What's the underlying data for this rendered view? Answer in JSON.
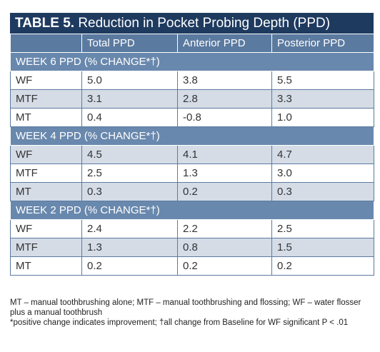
{
  "table": {
    "title_bold": "TABLE 5.",
    "title_rest": " Reduction in Pocket Probing Depth (PPD)",
    "headers": [
      "",
      "Total PPD",
      "Anterior PPD",
      "Posterior PPD"
    ],
    "sections": [
      {
        "label": "WEEK 6 PPD (% CHANGE*†)",
        "rows": [
          [
            "WF",
            "5.0",
            "3.8",
            "5.5"
          ],
          [
            "MTF",
            "3.1",
            "2.8",
            "3.3"
          ],
          [
            "MT",
            "0.4",
            "-0.8",
            "1.0"
          ]
        ]
      },
      {
        "label": "WEEK 4 PPD (% CHANGE*†)",
        "rows": [
          [
            "WF",
            "4.5",
            "4.1",
            "4.7"
          ],
          [
            "MTF",
            "2.5",
            "1.3",
            "3.0"
          ],
          [
            "MT",
            "0.3",
            "0.2",
            "0.3"
          ]
        ]
      },
      {
        "label": "WEEK 2 PPD (% CHANGE*†)",
        "rows": [
          [
            "WF",
            "2.4",
            "2.2",
            "2.5"
          ],
          [
            "MTF",
            "1.3",
            "0.8",
            "1.5"
          ],
          [
            "MT",
            "0.2",
            "0.2",
            "0.2"
          ]
        ]
      }
    ]
  },
  "footnotes": {
    "abbreviations": "MT – manual toothbrushing alone; MTF – manual toothbrushing and flossing; WF – water flosser plus a manual toothbrush",
    "significance": "*positive change indicates improvement; †all change from Baseline for WF significant P < .01"
  },
  "colors": {
    "title_bg": "#1e3a5f",
    "header_bg": "#5b7aa0",
    "section_bg": "#6988ad",
    "stripe_bg": "#d5dce6"
  }
}
